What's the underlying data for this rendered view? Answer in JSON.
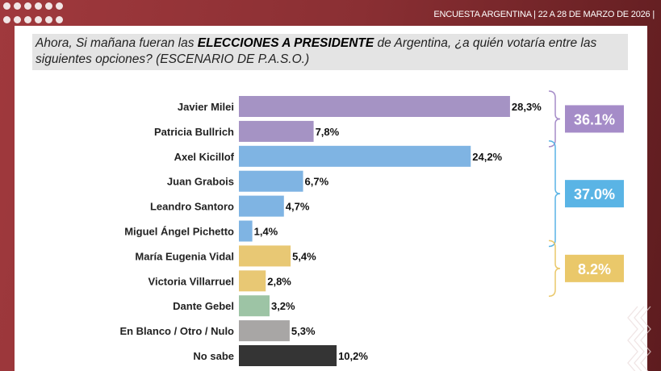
{
  "header": {
    "text": "ENCUESTA ARGENTINA | 22 A 28 DE MARZO DE 2026  |"
  },
  "question": {
    "part1": "Ahora, Si mañana fueran las ",
    "bold": "ELECCIONES A PRESIDENTE",
    "part2": " de Argentina, ¿a quién votaría entre las siguientes opciones? (ESCENARIO DE P.A.S.O.)"
  },
  "chart_data": {
    "type": "bar",
    "orientation": "horizontal",
    "categories": [
      "Javier Milei",
      "Patricia Bullrich",
      "Axel Kicillof",
      "Juan Grabois",
      "Leandro Santoro",
      "Miguel Ángel Pichetto",
      "María Eugenia Vidal",
      "Victoria Villarruel",
      "Dante Gebel",
      "En Blanco / Otro / Nulo",
      "No sabe"
    ],
    "values": [
      28.3,
      7.8,
      24.2,
      6.7,
      4.7,
      1.4,
      5.4,
      2.8,
      3.2,
      5.3,
      10.2
    ],
    "value_labels": [
      "28,3%",
      "7,8%",
      "24,2%",
      "6,7%",
      "4,7%",
      "1,4%",
      "5,4%",
      "2,8%",
      "3,2%",
      "5,3%",
      "10,2%"
    ],
    "colors": [
      "#a593c4",
      "#a593c4",
      "#7fb4e3",
      "#7fb4e3",
      "#7fb4e3",
      "#7fb4e3",
      "#e8c874",
      "#e8c874",
      "#9dc4a5",
      "#a8a6a5",
      "#343434"
    ],
    "groups": [
      {
        "label": "36.1%",
        "from": 0,
        "to": 1,
        "color": "#a58cc8"
      },
      {
        "label": "37.0%",
        "from": 2,
        "to": 5,
        "color": "#5ab4e5"
      },
      {
        "label": "8.2%",
        "from": 6,
        "to": 7,
        "color": "#eac86a"
      }
    ],
    "grid": false
  }
}
